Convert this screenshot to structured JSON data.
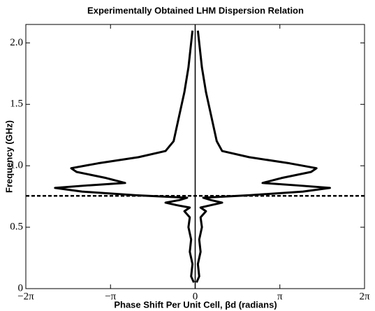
{
  "chart_data": {
    "type": "line",
    "title": "Experimentally Obtained LHM Dispersion Relation",
    "x_label": "Phase Shift Per Unit Cell, βd (radians)",
    "y_label": "Frequency (GHz)",
    "xlim": [
      -6.283,
      6.283
    ],
    "ylim": [
      0,
      2.15
    ],
    "xticks": [
      {
        "value": -6.283,
        "label": "−2π"
      },
      {
        "value": -3.1416,
        "label": "−π"
      },
      0,
      {
        "value": 3.1416,
        "label": "π"
      },
      {
        "value": 6.283,
        "label": "2π"
      }
    ],
    "yticks": [
      0,
      0.5,
      {
        "value": 1.0,
        "label": "1.0"
      },
      1.5,
      {
        "value": 2.0,
        "label": "2.0"
      }
    ],
    "series": [
      {
        "color": "#000000",
        "x": [
          0.05,
          0.15,
          0.1,
          0.2,
          0.15,
          0.25,
          0.2,
          0.4,
          0.2,
          0.6,
          1.0,
          0.6,
          0.3,
          2.0,
          4.0,
          5.0,
          3.8,
          2.5,
          3.2,
          4.3,
          4.5,
          3.5,
          2.0,
          1.0,
          0.8,
          0.6,
          0.4,
          0.25,
          0.15,
          0.1
        ],
        "values": [
          0.05,
          0.1,
          0.2,
          0.3,
          0.4,
          0.5,
          0.58,
          0.63,
          0.66,
          0.68,
          0.7,
          0.72,
          0.74,
          0.76,
          0.79,
          0.82,
          0.84,
          0.86,
          0.9,
          0.95,
          0.98,
          1.02,
          1.07,
          1.12,
          1.2,
          1.4,
          1.6,
          1.8,
          2.0,
          2.1
        ]
      },
      {
        "color": "#000000",
        "x": [
          -0.05,
          -0.15,
          -0.1,
          -0.2,
          -0.15,
          -0.25,
          -0.2,
          -0.4,
          -0.2,
          -0.7,
          -1.1,
          -0.6,
          -0.3,
          -2.2,
          -4.2,
          -5.2,
          -4.0,
          -2.6,
          -3.3,
          -4.4,
          -4.6,
          -3.6,
          -2.1,
          -1.1,
          -0.8,
          -0.6,
          -0.4,
          -0.25,
          -0.15,
          -0.1
        ],
        "values": [
          0.05,
          0.1,
          0.2,
          0.3,
          0.4,
          0.5,
          0.58,
          0.63,
          0.66,
          0.68,
          0.7,
          0.72,
          0.74,
          0.76,
          0.79,
          0.82,
          0.84,
          0.86,
          0.9,
          0.95,
          0.98,
          1.02,
          1.07,
          1.12,
          1.2,
          1.4,
          1.6,
          1.8,
          2.0,
          2.1
        ]
      }
    ],
    "vline": 0,
    "hline": 0.755
  }
}
